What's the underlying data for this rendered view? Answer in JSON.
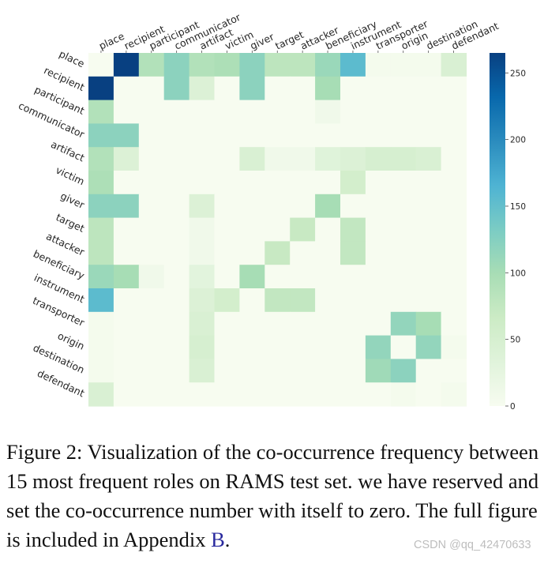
{
  "chart_data": {
    "type": "heatmap",
    "colormap": "GnBu",
    "roles": [
      "place",
      "recipient",
      "participant",
      "communicator",
      "artifact",
      "victim",
      "giver",
      "target",
      "attacker",
      "beneficiary",
      "instrument",
      "transporter",
      "origin",
      "destination",
      "defendant"
    ],
    "values": [
      [
        0,
        265,
        90,
        120,
        90,
        95,
        120,
        80,
        80,
        110,
        155,
        5,
        5,
        5,
        45
      ],
      [
        265,
        0,
        0,
        120,
        40,
        0,
        120,
        0,
        0,
        100,
        0,
        0,
        0,
        0,
        0
      ],
      [
        90,
        0,
        0,
        0,
        0,
        0,
        0,
        0,
        0,
        10,
        0,
        0,
        0,
        0,
        0
      ],
      [
        120,
        120,
        0,
        0,
        0,
        0,
        0,
        0,
        0,
        0,
        0,
        0,
        0,
        0,
        0
      ],
      [
        90,
        40,
        0,
        0,
        0,
        0,
        45,
        10,
        10,
        35,
        40,
        50,
        50,
        45,
        0
      ],
      [
        95,
        0,
        0,
        0,
        0,
        0,
        0,
        0,
        0,
        0,
        55,
        0,
        0,
        0,
        0
      ],
      [
        120,
        120,
        0,
        0,
        40,
        0,
        0,
        0,
        0,
        100,
        0,
        0,
        0,
        0,
        0
      ],
      [
        80,
        0,
        0,
        0,
        10,
        0,
        0,
        0,
        70,
        0,
        75,
        0,
        0,
        0,
        0
      ],
      [
        80,
        0,
        0,
        0,
        10,
        0,
        0,
        70,
        0,
        0,
        75,
        0,
        0,
        0,
        0
      ],
      [
        110,
        100,
        10,
        0,
        30,
        0,
        100,
        0,
        0,
        0,
        0,
        0,
        0,
        0,
        0
      ],
      [
        155,
        0,
        0,
        0,
        40,
        55,
        0,
        75,
        75,
        0,
        0,
        0,
        0,
        0,
        0
      ],
      [
        5,
        0,
        0,
        0,
        45,
        0,
        0,
        0,
        0,
        0,
        0,
        0,
        115,
        100,
        0
      ],
      [
        5,
        0,
        0,
        0,
        50,
        0,
        0,
        0,
        0,
        0,
        0,
        115,
        0,
        115,
        5
      ],
      [
        5,
        0,
        0,
        0,
        45,
        0,
        0,
        0,
        0,
        0,
        0,
        105,
        120,
        0,
        0
      ],
      [
        45,
        0,
        0,
        0,
        0,
        0,
        0,
        0,
        0,
        0,
        0,
        0,
        5,
        0,
        5
      ]
    ],
    "colorbar": {
      "min": 0,
      "max": 265,
      "ticks": [
        0,
        50,
        100,
        150,
        200,
        250
      ]
    }
  },
  "caption": {
    "text": "Figure 2: Visualization of the co-occurrence frequency between 15 most frequent roles on RAMS test set. we have reserved and set the co-occurrence number with itself to zero. The full figure is included in Appendix ",
    "link": "B",
    "end": "."
  },
  "watermark": "CSDN @qq_42470633"
}
